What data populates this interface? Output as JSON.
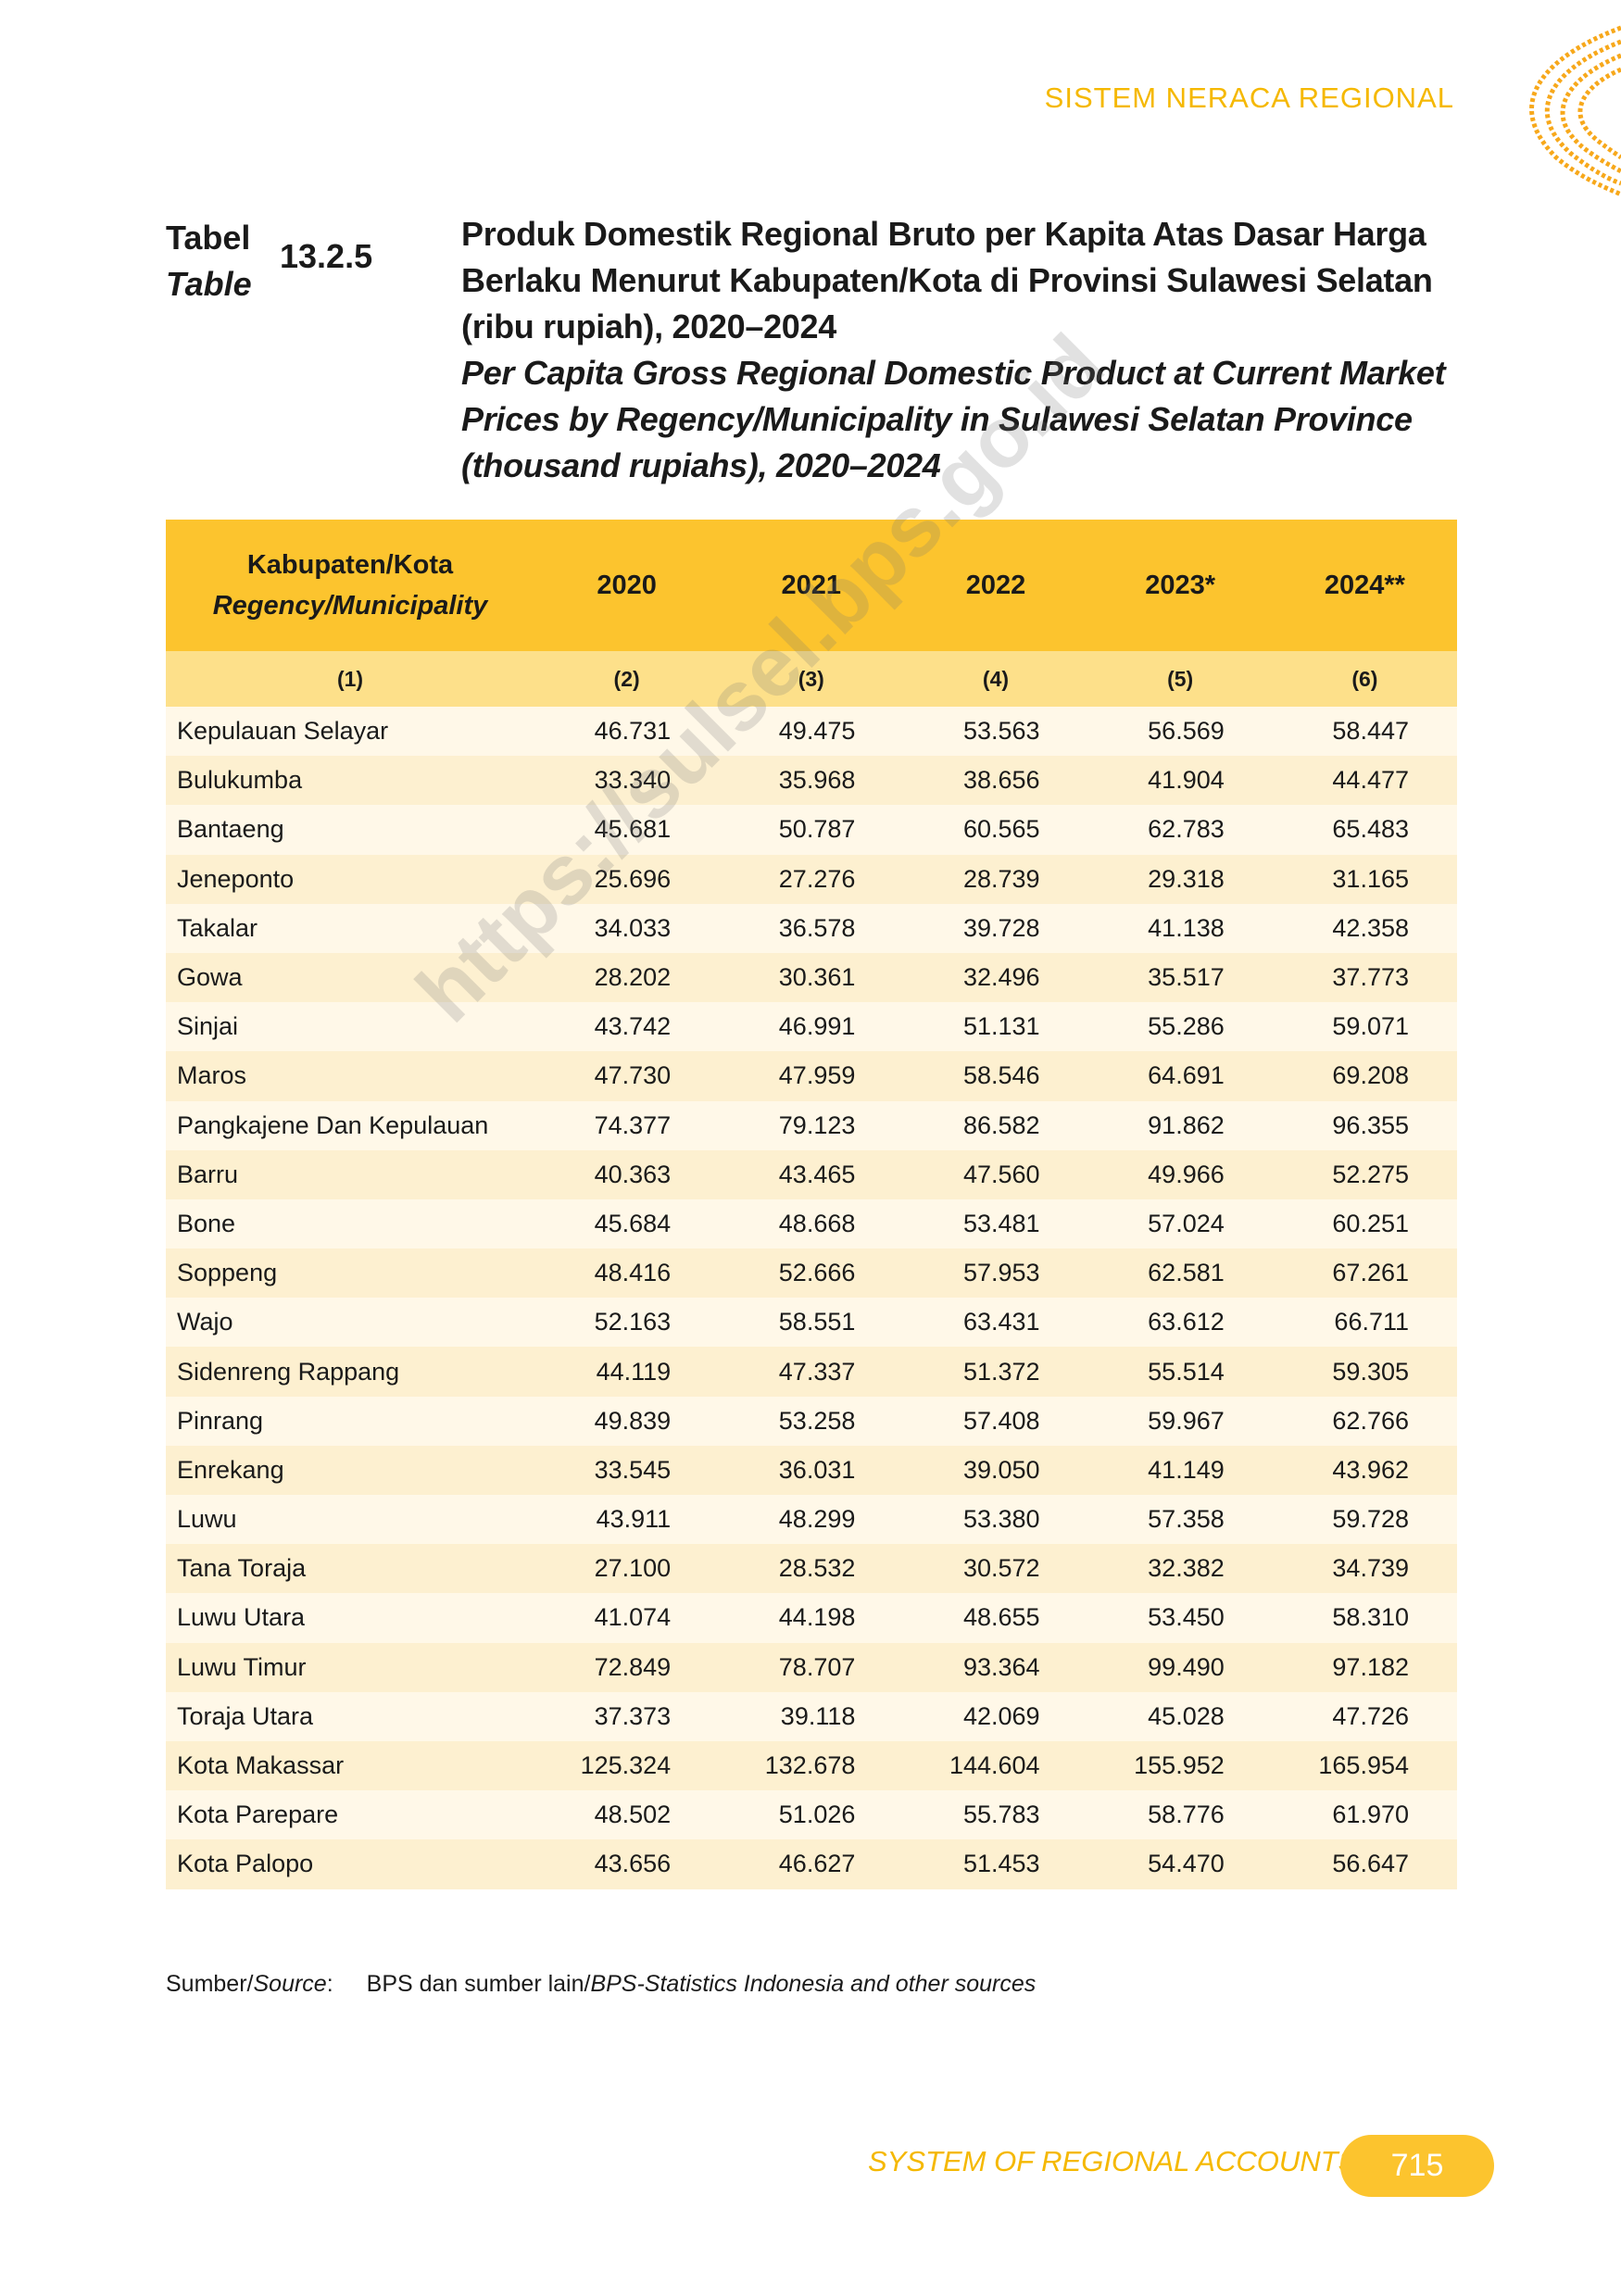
{
  "header": {
    "section": "SISTEM NERACA REGIONAL"
  },
  "caption": {
    "label_id": "Tabel",
    "label_en": "Table",
    "number": "13.2.5",
    "title_id": "Produk Domestik Regional Bruto per Kapita Atas Dasar Harga Berlaku Menurut Kabupaten/Kota di Provinsi Sulawesi Selatan (ribu rupiah), 2020–2024",
    "title_en": "Per Capita Gross Regional Domestic Product at Current Market Prices by Regency/Municipality in Sulawesi Selatan Province (thousand rupiahs), 2020–2024"
  },
  "watermark": "https://sulsel.bps.go.id",
  "table": {
    "columns": [
      "Kabupaten/Kota",
      "2020",
      "2021",
      "2022",
      "2023*",
      "2024**"
    ],
    "first_column_en": "Regency/Municipality",
    "column_numbers": [
      "(1)",
      "(2)",
      "(3)",
      "(4)",
      "(5)",
      "(6)"
    ],
    "rows": [
      [
        "Kepulauan Selayar",
        "46.731",
        "49.475",
        "53.563",
        "56.569",
        "58.447"
      ],
      [
        "Bulukumba",
        "33.340",
        "35.968",
        "38.656",
        "41.904",
        "44.477"
      ],
      [
        "Bantaeng",
        "45.681",
        "50.787",
        "60.565",
        "62.783",
        "65.483"
      ],
      [
        "Jeneponto",
        "25.696",
        "27.276",
        "28.739",
        "29.318",
        "31.165"
      ],
      [
        "Takalar",
        "34.033",
        "36.578",
        "39.728",
        "41.138",
        "42.358"
      ],
      [
        "Gowa",
        "28.202",
        "30.361",
        "32.496",
        "35.517",
        "37.773"
      ],
      [
        "Sinjai",
        "43.742",
        "46.991",
        "51.131",
        "55.286",
        "59.071"
      ],
      [
        "Maros",
        "47.730",
        "47.959",
        "58.546",
        "64.691",
        "69.208"
      ],
      [
        "Pangkajene Dan Kepulauan",
        "74.377",
        "79.123",
        "86.582",
        "91.862",
        "96.355"
      ],
      [
        "Barru",
        "40.363",
        "43.465",
        "47.560",
        "49.966",
        "52.275"
      ],
      [
        "Bone",
        "45.684",
        "48.668",
        "53.481",
        "57.024",
        "60.251"
      ],
      [
        "Soppeng",
        "48.416",
        "52.666",
        "57.953",
        "62.581",
        "67.261"
      ],
      [
        "Wajo",
        "52.163",
        "58.551",
        "63.431",
        "63.612",
        "66.711"
      ],
      [
        "Sidenreng Rappang",
        "44.119",
        "47.337",
        "51.372",
        "55.514",
        "59.305"
      ],
      [
        "Pinrang",
        "49.839",
        "53.258",
        "57.408",
        "59.967",
        "62.766"
      ],
      [
        "Enrekang",
        "33.545",
        "36.031",
        "39.050",
        "41.149",
        "43.962"
      ],
      [
        "Luwu",
        "43.911",
        "48.299",
        "53.380",
        "57.358",
        "59.728"
      ],
      [
        "Tana Toraja",
        "27.100",
        "28.532",
        "30.572",
        "32.382",
        "34.739"
      ],
      [
        "Luwu Utara",
        "41.074",
        "44.198",
        "48.655",
        "53.450",
        "58.310"
      ],
      [
        "Luwu Timur",
        "72.849",
        "78.707",
        "93.364",
        "99.490",
        "97.182"
      ],
      [
        "Toraja Utara",
        "37.373",
        "39.118",
        "42.069",
        "45.028",
        "47.726"
      ],
      [
        "Kota Makassar",
        "125.324",
        "132.678",
        "144.604",
        "155.952",
        "165.954"
      ],
      [
        "Kota Parepare",
        "48.502",
        "51.026",
        "55.783",
        "58.776",
        "61.970"
      ],
      [
        "Kota Palopo",
        "43.656",
        "46.627",
        "51.453",
        "54.470",
        "56.647"
      ]
    ]
  },
  "source": {
    "label_id": "Sumber/",
    "label_en": "Source",
    "separator": ":",
    "text_id": "BPS dan sumber lain/",
    "text_en": "BPS-Statistics Indonesia and other sources"
  },
  "footer": {
    "title": "SYSTEM OF REGIONAL ACCOUNTS",
    "page": "715"
  }
}
